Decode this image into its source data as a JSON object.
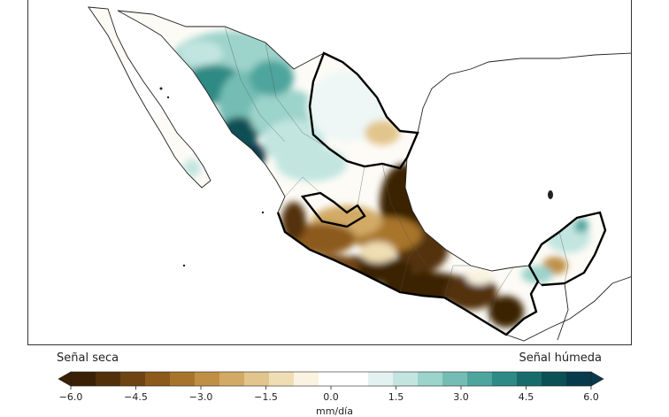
{
  "legend": {
    "dry_label": "Señal seca",
    "wet_label": "Señal húmeda",
    "unit": "mm/día",
    "ticks": [
      "−6.0",
      "−4.5",
      "−3.0",
      "−1.5",
      "0.0",
      "1.5",
      "3.0",
      "4.5",
      "6.0"
    ],
    "tick_values": [
      -6.0,
      -4.5,
      -3.0,
      -1.5,
      0.0,
      1.5,
      3.0,
      4.5,
      6.0
    ],
    "range": [
      -6.0,
      6.0
    ],
    "extend": "both",
    "colors": [
      "#3a2004",
      "#52300a",
      "#6f4412",
      "#8c5a1b",
      "#a8742c",
      "#bf8f45",
      "#d2aa66",
      "#e2c58c",
      "#efdeb4",
      "#faf3e1",
      "#ffffff",
      "#ffffff",
      "#e3f2f0",
      "#c2e5e0",
      "#9cd3cb",
      "#75bdb4",
      "#4ea59d",
      "#2e8a84",
      "#176c6b",
      "#0b5055",
      "#083a4d"
    ]
  },
  "map": {
    "ocean_color": "#ffffff",
    "land_outline_color": "#222222",
    "dry_color": "#3a2004",
    "wet_color": "#083a4d",
    "grid": false
  }
}
